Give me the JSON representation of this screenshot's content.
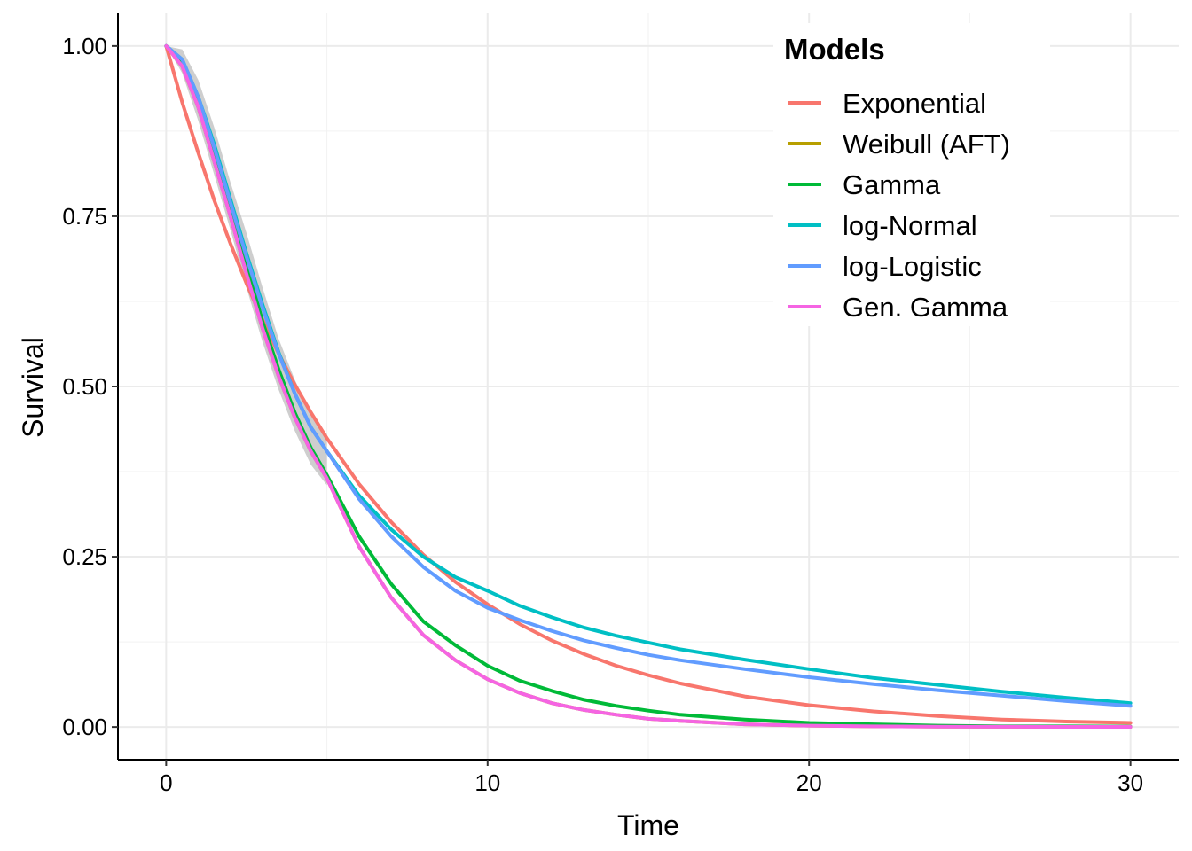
{
  "chart_data": {
    "type": "line",
    "title": "",
    "xlabel": "Time",
    "ylabel": "Survival",
    "xlim": [
      -1.5,
      31.5
    ],
    "ylim": [
      -0.048,
      1.048
    ],
    "x_ticks": [
      0,
      10,
      20,
      30
    ],
    "x_tick_labels": [
      "0",
      "10",
      "20",
      "30"
    ],
    "y_ticks": [
      0,
      0.25,
      0.5,
      0.75,
      1.0
    ],
    "y_tick_labels": [
      "0.00",
      "0.25",
      "0.50",
      "0.75",
      "1.00"
    ],
    "grid": true,
    "legend": {
      "title": "Models",
      "position": "top-right"
    },
    "x": [
      0,
      0.5,
      1,
      1.5,
      2,
      2.5,
      3,
      3.5,
      4,
      4.5,
      5,
      6,
      7,
      8,
      9,
      10,
      11,
      12,
      13,
      14,
      15,
      16,
      18,
      20,
      22,
      24,
      26,
      28,
      30
    ],
    "series": [
      {
        "name": "Exponential",
        "color": "#F8766D",
        "values": [
          1.0,
          0.917,
          0.843,
          0.773,
          0.71,
          0.651,
          0.598,
          0.548,
          0.503,
          0.462,
          0.424,
          0.357,
          0.301,
          0.253,
          0.213,
          0.18,
          0.151,
          0.127,
          0.107,
          0.09,
          0.076,
          0.064,
          0.045,
          0.032,
          0.023,
          0.016,
          0.011,
          0.008,
          0.006
        ]
      },
      {
        "name": "Weibull (AFT)",
        "color": "#B79F00",
        "values": [
          1.0,
          0.97,
          0.91,
          0.83,
          0.75,
          0.665,
          0.585,
          0.515,
          0.455,
          0.405,
          0.365,
          0.265,
          0.19,
          0.135,
          0.098,
          0.07,
          0.05,
          0.035,
          0.025,
          0.018,
          0.012,
          0.009,
          0.004,
          0.002,
          0.001,
          0.0005,
          0.0003,
          0.0002,
          0.0001
        ]
      },
      {
        "name": "Gamma",
        "color": "#00BA38",
        "values": [
          1.0,
          0.975,
          0.92,
          0.845,
          0.765,
          0.68,
          0.595,
          0.525,
          0.462,
          0.41,
          0.37,
          0.28,
          0.21,
          0.155,
          0.12,
          0.09,
          0.068,
          0.053,
          0.04,
          0.031,
          0.024,
          0.018,
          0.011,
          0.006,
          0.004,
          0.002,
          0.001,
          0.001,
          0.0005
        ]
      },
      {
        "name": "log-Normal",
        "color": "#00BFC4",
        "values": [
          1.0,
          0.98,
          0.925,
          0.855,
          0.775,
          0.695,
          0.62,
          0.55,
          0.49,
          0.44,
          0.405,
          0.34,
          0.29,
          0.25,
          0.22,
          0.2,
          0.178,
          0.161,
          0.146,
          0.134,
          0.124,
          0.114,
          0.099,
          0.085,
          0.072,
          0.062,
          0.052,
          0.043,
          0.035
        ]
      },
      {
        "name": "log-Logistic",
        "color": "#619CFF",
        "values": [
          1.0,
          0.98,
          0.925,
          0.85,
          0.77,
          0.69,
          0.615,
          0.548,
          0.49,
          0.44,
          0.405,
          0.335,
          0.28,
          0.235,
          0.2,
          0.175,
          0.157,
          0.141,
          0.127,
          0.116,
          0.106,
          0.098,
          0.085,
          0.073,
          0.063,
          0.054,
          0.046,
          0.038,
          0.031
        ]
      },
      {
        "name": "Gen. Gamma",
        "color": "#F564E3",
        "values": [
          1.0,
          0.97,
          0.91,
          0.83,
          0.75,
          0.665,
          0.585,
          0.515,
          0.455,
          0.405,
          0.365,
          0.265,
          0.19,
          0.135,
          0.098,
          0.07,
          0.05,
          0.035,
          0.025,
          0.018,
          0.012,
          0.009,
          0.004,
          0.002,
          0.001,
          0.0005,
          0.0003,
          0.0002,
          0.0001
        ]
      }
    ],
    "confidence_band": {
      "color": "#bdbdbd",
      "x": [
        0,
        0.5,
        1,
        1.5,
        2,
        2.5,
        3,
        3.5,
        4,
        4.5,
        5
      ],
      "lower": [
        1.0,
        0.96,
        0.89,
        0.81,
        0.73,
        0.645,
        0.565,
        0.495,
        0.435,
        0.385,
        0.355
      ],
      "upper": [
        1.0,
        0.995,
        0.95,
        0.88,
        0.8,
        0.725,
        0.645,
        0.57,
        0.51,
        0.46,
        0.43
      ]
    }
  }
}
